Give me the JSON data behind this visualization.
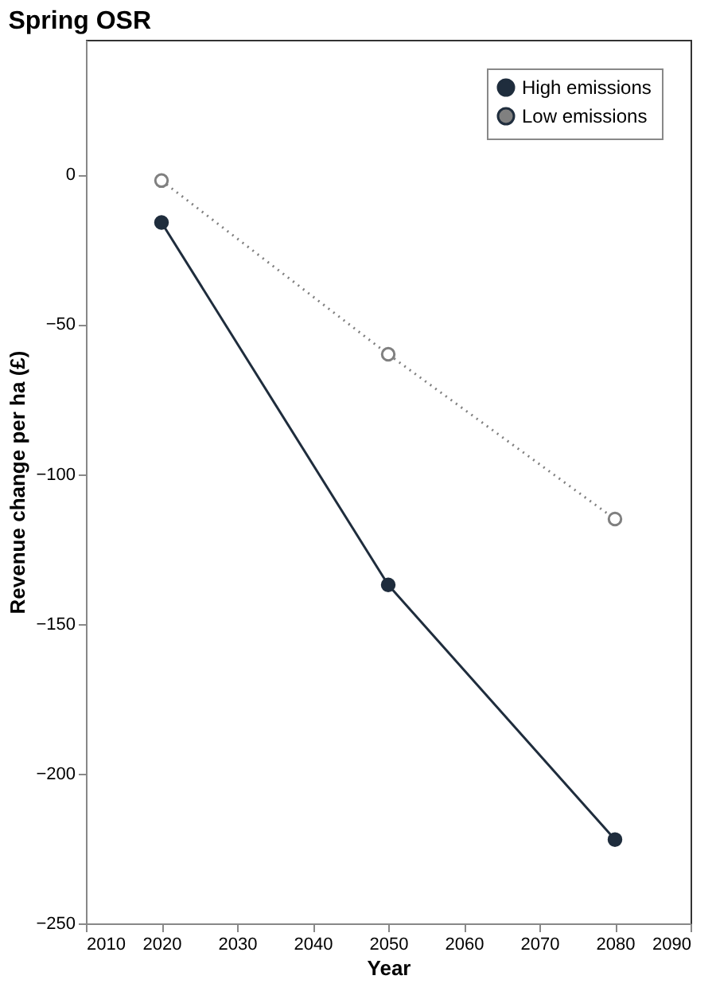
{
  "chart_data": {
    "type": "line",
    "title": "Spring OSR",
    "xlabel": "Year",
    "ylabel": "Revenue change per ha (£)",
    "x": [
      2020,
      2050,
      2080
    ],
    "series": [
      {
        "name": "High emissions",
        "color": "#1f2d3d",
        "values": [
          -16,
          -137,
          -222
        ],
        "line_style": "solid"
      },
      {
        "name": "Low emissions",
        "color": "#808080",
        "values": [
          -2,
          -60,
          -115
        ],
        "line_style": "dotted"
      }
    ],
    "xlim": [
      2010,
      2090
    ],
    "xticks": [
      2010,
      2020,
      2030,
      2040,
      2050,
      2060,
      2070,
      2080,
      2090
    ],
    "ylim": [
      -250,
      45
    ],
    "yticks": [
      0,
      -50,
      -100,
      -150,
      -200,
      -250
    ],
    "grid": false,
    "legend": "top right",
    "marker": "circle"
  }
}
